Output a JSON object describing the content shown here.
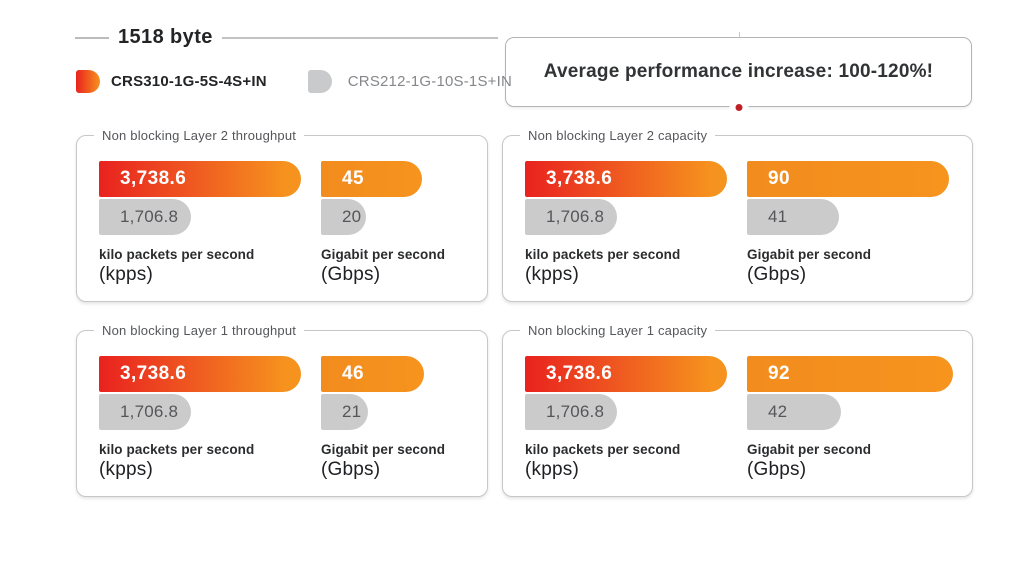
{
  "header": {
    "title": "1518 byte",
    "banner": "Average performance increase: 100-120%!"
  },
  "legend": {
    "items": [
      {
        "label": "CRS310-1G-5S-4S+IN",
        "swatch": "red-orange-gradient"
      },
      {
        "label": "CRS212-1G-10S-1S+IN",
        "swatch": "#c9cacb"
      }
    ]
  },
  "colors": {
    "red": "#e9221f",
    "orange": "#f6921e",
    "gray_bar": "#cbcbcb",
    "red_dot": "#bf2026"
  },
  "chart_data": {
    "type": "bar",
    "orientation": "horizontal",
    "series": [
      "CRS310-1G-5S-4S+IN",
      "CRS212-1G-10S-1S+IN"
    ],
    "units": {
      "kpps": {
        "name": "kilo packets per second",
        "abbr": "(kpps)",
        "scale_max": 3738.6
      },
      "gbps": {
        "name": "Gigabit per second",
        "abbr": "(Gbps)",
        "scale_max": 92
      }
    },
    "panels": [
      {
        "title": "Non blocking Layer 2 throughput",
        "groups": [
          {
            "unit": "kpps",
            "unit_name": "kilo packets per second",
            "unit_abbr": "(kpps)",
            "scale_max": 3738.6,
            "values": [
              3738.6,
              1706.8
            ],
            "labels": [
              "3,738.6",
              "1,706.8"
            ]
          },
          {
            "unit": "gbps",
            "unit_name": "Gigabit per second",
            "unit_abbr": "(Gbps)",
            "scale_max": 92,
            "values": [
              45,
              20
            ],
            "labels": [
              "45",
              "20"
            ]
          }
        ]
      },
      {
        "title": "Non blocking Layer 2 capacity",
        "groups": [
          {
            "unit": "kpps",
            "unit_name": "kilo packets per second",
            "unit_abbr": "(kpps)",
            "scale_max": 3738.6,
            "values": [
              3738.6,
              1706.8
            ],
            "labels": [
              "3,738.6",
              "1,706.8"
            ]
          },
          {
            "unit": "gbps",
            "unit_name": "Gigabit per second",
            "unit_abbr": "(Gbps)",
            "scale_max": 92,
            "values": [
              90,
              41
            ],
            "labels": [
              "90",
              "41"
            ]
          }
        ]
      },
      {
        "title": "Non blocking Layer 1 throughput",
        "groups": [
          {
            "unit": "kpps",
            "unit_name": "kilo packets per second",
            "unit_abbr": "(kpps)",
            "scale_max": 3738.6,
            "values": [
              3738.6,
              1706.8
            ],
            "labels": [
              "3,738.6",
              "1,706.8"
            ]
          },
          {
            "unit": "gbps",
            "unit_name": "Gigabit per second",
            "unit_abbr": "(Gbps)",
            "scale_max": 92,
            "values": [
              46,
              21
            ],
            "labels": [
              "46",
              "21"
            ]
          }
        ]
      },
      {
        "title": "Non blocking Layer 1 capacity",
        "groups": [
          {
            "unit": "kpps",
            "unit_name": "kilo packets per second",
            "unit_abbr": "(kpps)",
            "scale_max": 3738.6,
            "values": [
              3738.6,
              1706.8
            ],
            "labels": [
              "3,738.6",
              "1,706.8"
            ]
          },
          {
            "unit": "gbps",
            "unit_name": "Gigabit per second",
            "unit_abbr": "(Gbps)",
            "scale_max": 92,
            "values": [
              92,
              42
            ],
            "labels": [
              "92",
              "42"
            ]
          }
        ]
      }
    ]
  }
}
